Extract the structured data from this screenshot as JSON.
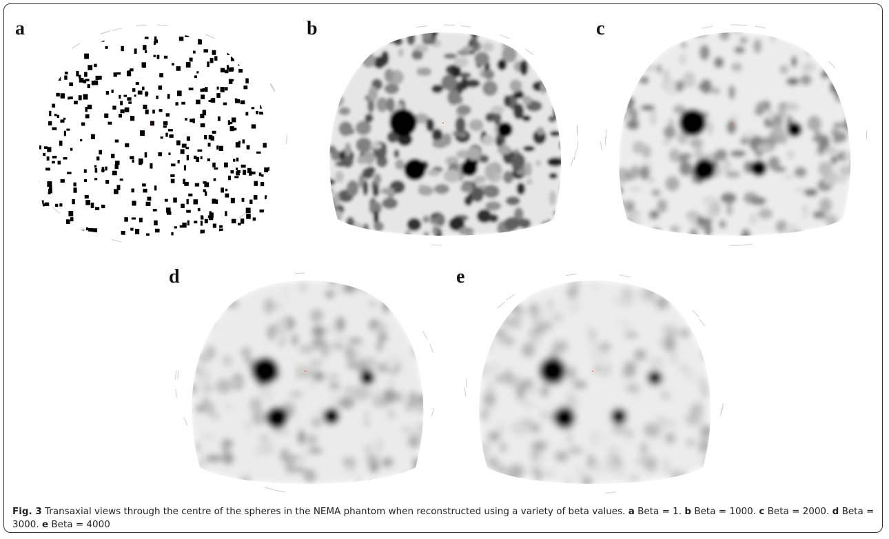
{
  "panels": [
    {
      "label": "a"
    },
    {
      "label": "b"
    },
    {
      "label": "c"
    },
    {
      "label": "d"
    },
    {
      "label": "e"
    }
  ],
  "caption": {
    "figure_label": "Fig. 3",
    "text": "Transaxial views through the centre of the spheres in the NEMA phantom when reconstructed using a variety of beta values.",
    "items": [
      {
        "label": "a",
        "text": "Beta = 1."
      },
      {
        "label": "b",
        "text": "Beta = 1000."
      },
      {
        "label": "c",
        "text": "Beta = 2000."
      },
      {
        "label": "d",
        "text": "Beta = 3000."
      },
      {
        "label": "e",
        "text": "Beta = 4000"
      }
    ]
  }
}
